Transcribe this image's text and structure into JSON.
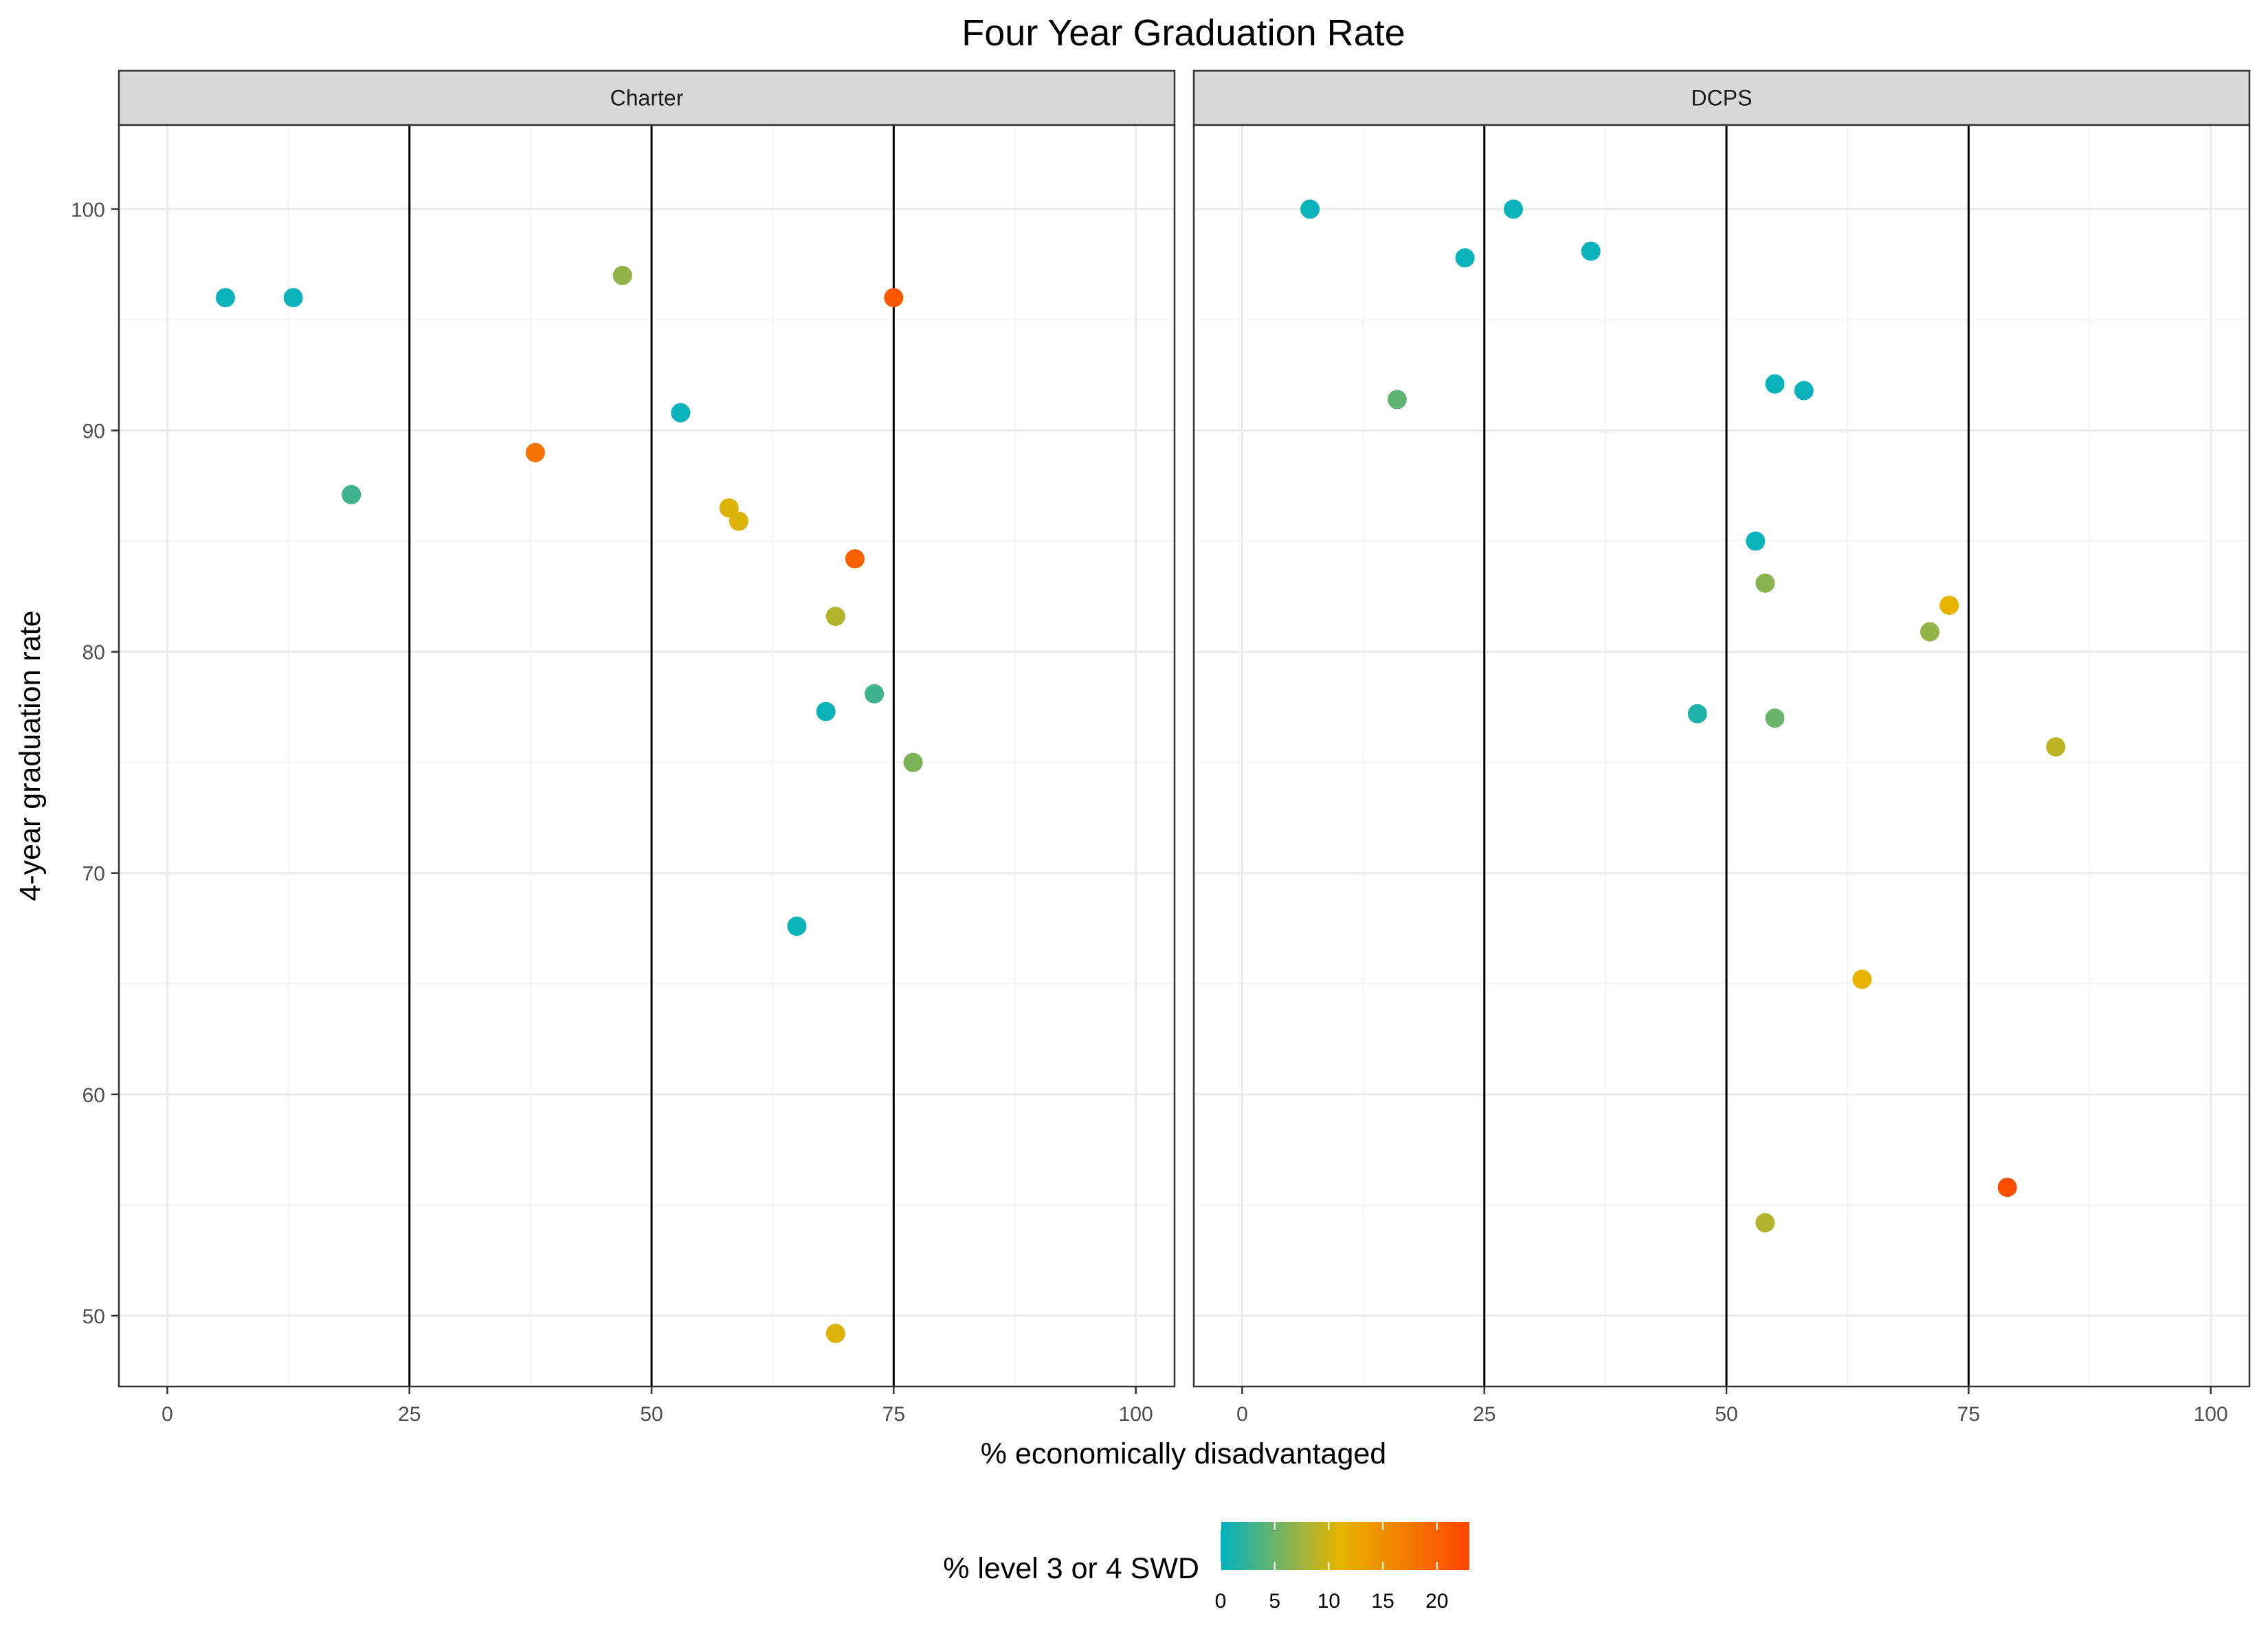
{
  "chart_data": {
    "type": "scatter",
    "title": "Four Year Graduation Rate",
    "xlabel": "% economically disadvantaged",
    "ylabel": "4-year graduation rate",
    "xlim": [
      -5,
      104
    ],
    "ylim": [
      46.8,
      103.8
    ],
    "x_ticks": [
      0,
      25,
      50,
      75,
      100
    ],
    "y_ticks": [
      50,
      60,
      70,
      80,
      90,
      100
    ],
    "vlines": [
      25,
      50,
      75
    ],
    "grid": true,
    "color_scale": {
      "title": "% level 3 or 4 SWD",
      "min": 0,
      "max": 23,
      "stops": [
        {
          "value": 0,
          "color": "#00b2c2"
        },
        {
          "value": 11,
          "color": "#e6b400"
        },
        {
          "value": 23,
          "color": "#ff4500"
        }
      ],
      "ticks": [
        0,
        5,
        10,
        15,
        20
      ],
      "position": "bottom"
    },
    "panels": [
      {
        "name": "Charter",
        "points": [
          {
            "x": 6,
            "y": 96,
            "c": 0.5
          },
          {
            "x": 13,
            "y": 96,
            "c": 0.5
          },
          {
            "x": 19,
            "y": 87.1,
            "c": 3
          },
          {
            "x": 38,
            "y": 89,
            "c": 18
          },
          {
            "x": 47,
            "y": 97,
            "c": 7
          },
          {
            "x": 53,
            "y": 90.8,
            "c": 0.5
          },
          {
            "x": 58,
            "y": 86.5,
            "c": 10.5
          },
          {
            "x": 59,
            "y": 85.9,
            "c": 10.5
          },
          {
            "x": 71,
            "y": 84.2,
            "c": 20
          },
          {
            "x": 75,
            "y": 96,
            "c": 21
          },
          {
            "x": 69,
            "y": 81.6,
            "c": 8.5
          },
          {
            "x": 73,
            "y": 78.1,
            "c": 3
          },
          {
            "x": 68,
            "y": 77.3,
            "c": 0.5
          },
          {
            "x": 77,
            "y": 75,
            "c": 6
          },
          {
            "x": 65,
            "y": 67.6,
            "c": 0.5
          },
          {
            "x": 69,
            "y": 49.2,
            "c": 10.5
          }
        ]
      },
      {
        "name": "DCPS",
        "points": [
          {
            "x": 7,
            "y": 100,
            "c": 0.5
          },
          {
            "x": 28,
            "y": 100,
            "c": 0.5
          },
          {
            "x": 23,
            "y": 97.8,
            "c": 0.5
          },
          {
            "x": 36,
            "y": 98.1,
            "c": 0.5
          },
          {
            "x": 16,
            "y": 91.4,
            "c": 4.5
          },
          {
            "x": 55,
            "y": 92.1,
            "c": 0.5
          },
          {
            "x": 58,
            "y": 91.8,
            "c": 0.5
          },
          {
            "x": 53,
            "y": 85,
            "c": 0.5
          },
          {
            "x": 54,
            "y": 83.1,
            "c": 6.5
          },
          {
            "x": 73,
            "y": 82.1,
            "c": 11
          },
          {
            "x": 71,
            "y": 80.9,
            "c": 7
          },
          {
            "x": 47,
            "y": 77.2,
            "c": 1.5
          },
          {
            "x": 55,
            "y": 77,
            "c": 5
          },
          {
            "x": 84,
            "y": 75.7,
            "c": 9
          },
          {
            "x": 64,
            "y": 65.2,
            "c": 11
          },
          {
            "x": 79,
            "y": 55.8,
            "c": 22
          },
          {
            "x": 54,
            "y": 54.2,
            "c": 8.5
          }
        ]
      }
    ]
  }
}
